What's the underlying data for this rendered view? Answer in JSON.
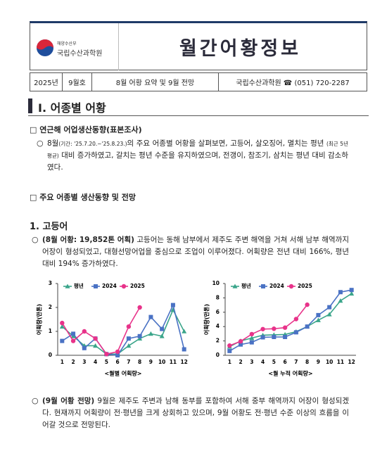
{
  "header": {
    "ministry": "해양수산부",
    "institute": "국립수산과학원",
    "title": "월간어황정보",
    "year": "2025년",
    "issue": "9월호",
    "subject": "8월 어황 요약 및 9월 전망",
    "contact": "국립수산과학원 ☎ (051) 720-2287"
  },
  "section": {
    "heading": "Ⅰ. 어종별 어황",
    "sub1": "□ 연근해 어업생산동향(표본조사)",
    "para1": {
      "bullet": "○",
      "parts": [
        "8월",
        "(기간: '25.7.20.~'25.8.23.)",
        "의 주요 어종별 어황을 살펴보면, 고등어, 살오징어, 멸치는 평년",
        "(최근 5년 평균)",
        " 대비 증가하였고, 갈치는 평년 수준을 유지하였으며, 전갱이, 참조기, 삼치는 평년 대비 감소하였다."
      ]
    },
    "sub2": "□ 주요 어종별 생산동향 및 전망",
    "species": "1. 고등어",
    "para2": {
      "bullet": "○",
      "lead": "(8월 어황: 19,852톤 어획)",
      "text": " 고등어는 동해 남부에서 제주도 주변 해역을 거쳐 서해 남부 해역까지 어장이 형성되었고, 대형선망어업을 중심으로 조업이 이루어졌다. 어획량은 전년 대비 166%, 평년 대비 194% 증가하였다."
    },
    "para3": {
      "bullet": "○",
      "lead": "(9월 어황 전망)",
      "text": " 9월은 제주도 주변과 남해 동부를 포함하여 서해 중부 해역까지 어장이 형성되겠다. 현재까지 어획량이 전·평년을 크게 상회하고 있으며, 9월 어황도 전·평년 수준 이상의 흐름을 이어갈 것으로 전망된다."
    }
  },
  "chart_data": [
    {
      "type": "line",
      "ylabel": "어획량(만톤)",
      "xlabel": "<월별 어획량>",
      "categories": [
        "1",
        "2",
        "3",
        "4",
        "5",
        "6",
        "7",
        "8",
        "9",
        "10",
        "11",
        "12"
      ],
      "ylim": [
        0,
        3
      ],
      "yticks": [
        0,
        1,
        2,
        3
      ],
      "legend": "top-left",
      "series": [
        {
          "name": "평년",
          "color": "#3aa58a",
          "marker": "triangle",
          "values": [
            1.2,
            0.8,
            0.4,
            0.4,
            0.05,
            0.05,
            0.4,
            0.7,
            0.9,
            0.8,
            1.9,
            1.0
          ]
        },
        {
          "name": "2024",
          "color": "#4a72c4",
          "marker": "square",
          "values": [
            0.6,
            0.9,
            0.3,
            0.7,
            0.05,
            0.0,
            0.7,
            0.8,
            1.6,
            1.1,
            2.1,
            0.25
          ]
        },
        {
          "name": "2025",
          "color": "#e8338a",
          "marker": "circle",
          "values": [
            1.35,
            0.6,
            1.0,
            0.7,
            0.05,
            0.15,
            1.2,
            2.0,
            null,
            null,
            null,
            null
          ]
        }
      ]
    },
    {
      "type": "line",
      "ylabel": "어획량(만톤)",
      "xlabel": "<월 누적 어획량>",
      "categories": [
        "1",
        "2",
        "3",
        "4",
        "5",
        "6",
        "7",
        "8",
        "9",
        "10",
        "11",
        "12"
      ],
      "ylim": [
        0,
        10
      ],
      "yticks": [
        0,
        2,
        4,
        6,
        8,
        10
      ],
      "legend": "top-left",
      "series": [
        {
          "name": "평년",
          "color": "#3aa58a",
          "marker": "triangle",
          "values": [
            1.2,
            2.0,
            2.4,
            2.8,
            2.85,
            2.9,
            3.3,
            4.0,
            4.9,
            5.7,
            7.6,
            8.6
          ]
        },
        {
          "name": "2024",
          "color": "#4a72c4",
          "marker": "square",
          "values": [
            0.6,
            1.5,
            1.8,
            2.5,
            2.55,
            2.55,
            3.2,
            4.0,
            5.6,
            6.7,
            8.8,
            9.1
          ]
        },
        {
          "name": "2025",
          "color": "#e8338a",
          "marker": "circle",
          "values": [
            1.35,
            1.95,
            2.95,
            3.65,
            3.7,
            3.85,
            5.05,
            7.05,
            null,
            null,
            null,
            null
          ]
        }
      ]
    }
  ]
}
